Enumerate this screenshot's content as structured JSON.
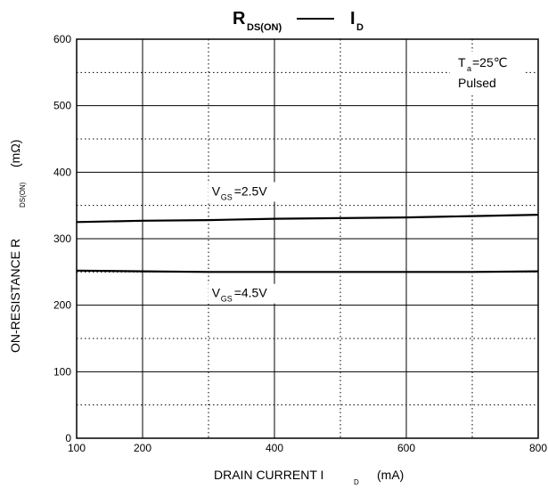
{
  "chart_data": {
    "type": "line",
    "title": {
      "left_main": "R",
      "left_sub": "DS(ON)",
      "right_main": "I",
      "right_sub": "D"
    },
    "xlabel": {
      "text": "DRAIN CURRENT   I",
      "sub": "D",
      "unit": "(mA)"
    },
    "ylabel": {
      "text": "ON-RESISTANCE   R",
      "sub": "DS(ON)",
      "unit": "(mΩ)"
    },
    "xlim": [
      100,
      800
    ],
    "ylim": [
      0,
      600
    ],
    "x_ticks": [
      100,
      200,
      400,
      600,
      800
    ],
    "x_gridlines_solid": [
      200,
      400,
      600
    ],
    "x_gridlines_dotted": [
      300,
      500,
      700
    ],
    "y_ticks": [
      0,
      100,
      200,
      300,
      400,
      500,
      600
    ],
    "y_gridlines_solid": [
      100,
      200,
      300,
      400,
      500
    ],
    "y_gridlines_dotted": [
      50,
      150,
      250,
      350,
      450,
      550
    ],
    "grid": true,
    "series": [
      {
        "name": "VGS=2.5V",
        "label_main": "V",
        "label_sub": "GS",
        "label_rest": "=2.5V",
        "label_at": [
          305,
          365
        ],
        "x": [
          100,
          200,
          300,
          400,
          500,
          600,
          700,
          800
        ],
        "y": [
          325,
          327,
          328,
          330,
          331,
          332,
          334,
          336
        ]
      },
      {
        "name": "VGS=4.5V",
        "label_main": "V",
        "label_sub": "GS",
        "label_rest": "=4.5V",
        "label_at": [
          305,
          212
        ],
        "x": [
          100,
          200,
          300,
          400,
          500,
          600,
          700,
          800
        ],
        "y": [
          252,
          251,
          250,
          250,
          250,
          250,
          250,
          251
        ]
      }
    ],
    "annotations": {
      "ta_main": "T",
      "ta_sub": "a",
      "ta_rest": "=25℃",
      "pulsed": "Pulsed"
    }
  }
}
